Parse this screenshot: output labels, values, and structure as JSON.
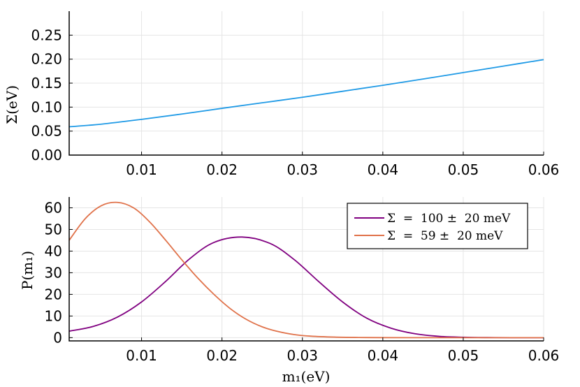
{
  "chart_data": [
    {
      "type": "line",
      "xlabel": "",
      "ylabel": "Σ(eV)",
      "xlim": [
        0.001,
        0.06
      ],
      "ylim": [
        0.0,
        0.3
      ],
      "grid": true,
      "x_ticks": [
        "0.01",
        "0.02",
        "0.03",
        "0.04",
        "0.05",
        "0.06"
      ],
      "y_ticks": [
        "0.00",
        "0.05",
        "0.10",
        "0.15",
        "0.20",
        "0.25"
      ],
      "series": [
        {
          "color": "#1f9ae6",
          "x": [
            0.001,
            0.005,
            0.01,
            0.015,
            0.02,
            0.025,
            0.03,
            0.035,
            0.04,
            0.045,
            0.05,
            0.055,
            0.06
          ],
          "y": [
            0.059,
            0.0645,
            0.0745,
            0.0855,
            0.0975,
            0.109,
            0.1205,
            0.133,
            0.1455,
            0.1585,
            0.172,
            0.1855,
            0.199
          ]
        }
      ]
    },
    {
      "type": "line",
      "xlabel": "m₁(eV)",
      "ylabel": "P(m₁)",
      "xlim": [
        0.001,
        0.06
      ],
      "ylim": [
        -1.5,
        65
      ],
      "grid": true,
      "legend_position": "top-right",
      "x_ticks": [
        "0.01",
        "0.02",
        "0.03",
        "0.04",
        "0.05",
        "0.06"
      ],
      "y_ticks": [
        "0",
        "10",
        "20",
        "30",
        "40",
        "50",
        "60"
      ],
      "series": [
        {
          "name": "Σ = 100 ± 20 meV",
          "color": "#800080",
          "x": [
            0.001,
            0.004,
            0.007,
            0.01,
            0.013,
            0.016,
            0.019,
            0.0225,
            0.026,
            0.029,
            0.032,
            0.035,
            0.038,
            0.041,
            0.044,
            0.047,
            0.05,
            0.053,
            0.056,
            0.06
          ],
          "y": [
            3.0,
            5.2,
            9.5,
            16.5,
            26.0,
            36.5,
            44.0,
            46.5,
            43.5,
            36.0,
            26.0,
            16.5,
            9.0,
            4.4,
            1.8,
            0.6,
            0.2,
            0.05,
            0.0,
            0.0
          ]
        },
        {
          "name": "Σ = 59 ± 20 meV",
          "color": "#e0724a",
          "x": [
            0.001,
            0.003,
            0.005,
            0.007,
            0.009,
            0.011,
            0.013,
            0.015,
            0.017,
            0.019,
            0.021,
            0.023,
            0.025,
            0.027,
            0.029,
            0.031,
            0.034,
            0.037,
            0.04,
            0.045,
            0.05,
            0.06
          ],
          "y": [
            45.0,
            55.0,
            61.0,
            62.5,
            60.0,
            53.5,
            45.0,
            36.0,
            27.5,
            20.0,
            13.5,
            8.5,
            5.0,
            2.8,
            1.4,
            0.7,
            0.25,
            0.08,
            0.02,
            0.0,
            0.0,
            0.0
          ]
        }
      ],
      "legend": [
        {
          "label": "Σ  =  100 ±  20 meV",
          "color": "#800080"
        },
        {
          "label": "Σ  =  59 ±  20 meV",
          "color": "#e0724a"
        }
      ]
    }
  ]
}
